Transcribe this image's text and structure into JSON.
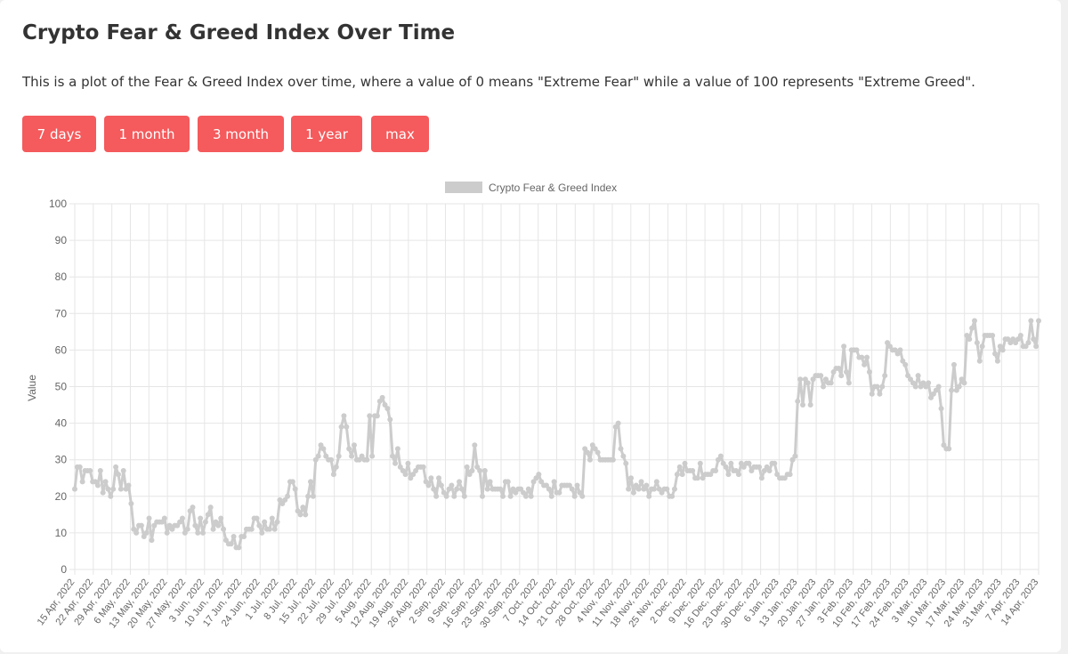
{
  "page": {
    "title": "Crypto Fear & Greed Index Over Time",
    "description": "This is a plot of the Fear & Greed Index over time, where a value of 0 means \"Extreme Fear\" while a value of 100 represents \"Extreme Greed\"."
  },
  "range_buttons": [
    {
      "label": "7 days"
    },
    {
      "label": "1 month"
    },
    {
      "label": "3 month"
    },
    {
      "label": "1 year"
    },
    {
      "label": "max"
    }
  ],
  "colors": {
    "button_bg": "#f55a5c",
    "series_line": "#cccccc",
    "grid": "#e6e6e6",
    "text": "#333333"
  },
  "chart_data": {
    "type": "line",
    "ylabel": "Value",
    "ylim": [
      0,
      100
    ],
    "y_ticks": [
      0,
      10,
      20,
      30,
      40,
      50,
      60,
      70,
      80,
      90,
      100
    ],
    "grid": true,
    "legend": "top-center",
    "x_start": "2022-04-15",
    "x_end": "2023-04-14",
    "x_tick_labels": [
      "15 Apr, 2022",
      "22 Apr, 2022",
      "29 Apr, 2022",
      "6 May, 2022",
      "13 May, 2022",
      "20 May, 2022",
      "27 May, 2022",
      "3 Jun, 2022",
      "10 Jun, 2022",
      "17 Jun, 2022",
      "24 Jun, 2022",
      "1 Jul, 2022",
      "8 Jul, 2022",
      "15 Jul, 2022",
      "22 Jul, 2022",
      "29 Jul, 2022",
      "5 Aug, 2022",
      "12 Aug, 2022",
      "19 Aug, 2022",
      "26 Aug, 2022",
      "2 Sep, 2022",
      "9 Sep, 2022",
      "16 Sep, 2022",
      "23 Sep, 2022",
      "30 Sep, 2022",
      "7 Oct, 2022",
      "14 Oct, 2022",
      "21 Oct, 2022",
      "28 Oct, 2022",
      "4 Nov, 2022",
      "11 Nov, 2022",
      "18 Nov, 2022",
      "25 Nov, 2022",
      "2 Dec, 2022",
      "9 Dec, 2022",
      "16 Dec, 2022",
      "23 Dec, 2022",
      "30 Dec, 2022",
      "6 Jan, 2023",
      "13 Jan, 2023",
      "20 Jan, 2023",
      "27 Jan, 2023",
      "3 Feb, 2023",
      "10 Feb, 2023",
      "17 Feb, 2023",
      "24 Feb, 2023",
      "3 Mar, 2023",
      "10 Mar, 2023",
      "17 Mar, 2023",
      "24 Mar, 2023",
      "31 Mar, 2023",
      "7 Apr, 2023",
      "14 Apr, 2023"
    ],
    "series": [
      {
        "name": "Crypto Fear & Greed Index",
        "values": [
          22,
          28,
          28,
          24,
          27,
          27,
          27,
          24,
          24,
          23,
          27,
          21,
          24,
          22,
          20,
          22,
          28,
          26,
          22,
          27,
          22,
          23,
          18,
          11,
          10,
          12,
          12,
          9,
          10,
          14,
          8,
          12,
          13,
          13,
          13,
          14,
          10,
          12,
          11,
          12,
          12,
          13,
          14,
          10,
          11,
          16,
          17,
          12,
          10,
          14,
          10,
          13,
          15,
          17,
          11,
          13,
          12,
          14,
          11,
          8,
          7,
          7,
          9,
          6,
          6,
          9,
          9,
          11,
          11,
          11,
          14,
          14,
          12,
          10,
          13,
          11,
          11,
          14,
          11,
          13,
          19,
          18,
          19,
          20,
          24,
          24,
          22,
          16,
          15,
          17,
          15,
          20,
          24,
          20,
          30,
          31,
          34,
          33,
          31,
          30,
          30,
          26,
          28,
          31,
          39,
          42,
          39,
          33,
          31,
          34,
          30,
          30,
          31,
          30,
          30,
          42,
          31,
          42,
          42,
          46,
          47,
          45,
          44,
          41,
          31,
          29,
          33,
          28,
          27,
          26,
          29,
          25,
          26,
          27,
          28,
          28,
          28,
          24,
          23,
          25,
          22,
          20,
          25,
          23,
          21,
          20,
          22,
          23,
          20,
          22,
          24,
          22,
          20,
          28,
          26,
          27,
          34,
          28,
          27,
          20,
          27,
          22,
          24,
          22,
          22,
          22,
          22,
          20,
          24,
          24,
          20,
          22,
          21,
          22,
          22,
          21,
          20,
          22,
          20,
          24,
          25,
          26,
          24,
          23,
          23,
          22,
          20,
          24,
          21,
          21,
          23,
          23,
          23,
          23,
          22,
          20,
          23,
          21,
          20,
          33,
          32,
          30,
          34,
          33,
          32,
          30,
          30,
          30,
          30,
          30,
          30,
          39,
          40,
          33,
          31,
          29,
          22,
          25,
          21,
          23,
          22,
          24,
          22,
          23,
          20,
          22,
          22,
          24,
          22,
          21,
          22,
          22,
          20,
          20,
          22,
          26,
          28,
          26,
          29,
          27,
          27,
          27,
          25,
          25,
          29,
          25,
          26,
          26,
          26,
          27,
          27,
          30,
          31,
          29,
          28,
          26,
          29,
          27,
          27,
          26,
          29,
          28,
          29,
          29,
          27,
          28,
          28,
          28,
          25,
          27,
          28,
          27,
          29,
          29,
          26,
          25,
          25,
          25,
          26,
          26,
          30,
          31,
          46,
          52,
          45,
          52,
          51,
          45,
          52,
          53,
          53,
          53,
          50,
          52,
          51,
          51,
          54,
          55,
          55,
          53,
          61,
          54,
          51,
          60,
          60,
          60,
          58,
          58,
          56,
          58,
          54,
          48,
          50,
          50,
          48,
          50,
          53,
          62,
          61,
          60,
          60,
          59,
          60,
          57,
          56,
          53,
          52,
          51,
          50,
          53,
          50,
          51,
          50,
          51,
          47,
          48,
          49,
          50,
          44,
          34,
          33,
          33,
          49,
          56,
          49,
          50,
          52,
          51,
          64,
          63,
          66,
          68,
          62,
          57,
          61,
          64,
          64,
          64,
          64,
          59,
          57,
          61,
          60,
          63,
          63,
          62,
          63,
          62,
          63,
          64,
          61,
          61,
          62,
          68,
          63,
          61,
          68
        ]
      }
    ]
  }
}
